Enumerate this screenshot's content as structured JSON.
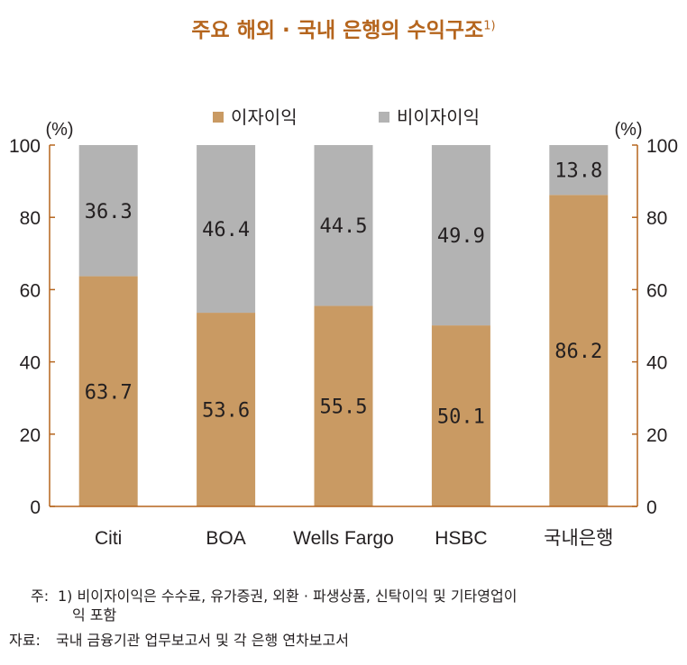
{
  "title": "주요 해외 · 국내 은행의 수익구조",
  "title_sup": "1)",
  "chart_data": {
    "type": "bar",
    "stacked": true,
    "categories": [
      "Citi",
      "BOA",
      "Wells Fargo",
      "HSBC",
      "국내은행"
    ],
    "series": [
      {
        "name": "이자이익",
        "values": [
          63.7,
          53.6,
          55.5,
          50.1,
          86.2
        ],
        "color": "#c99a63"
      },
      {
        "name": "비이자이익",
        "values": [
          36.3,
          46.4,
          44.5,
          49.9,
          13.8
        ],
        "color": "#b3b3b3"
      }
    ],
    "ylim": [
      0,
      100
    ],
    "yticks": [
      0,
      20,
      40,
      60,
      80,
      100
    ],
    "yunit_left": "(%)",
    "yunit_right": "(%)",
    "axis_color": "#b5651d",
    "legend_position": "top"
  },
  "notes": {
    "note_prefix": "주:",
    "note_line1": "1) 비이자이익은 수수료, 유가증권, 외환 · 파생상품, 신탁이익 및 기타영업이",
    "note_line2": "익 포함",
    "source_prefix": "자료:",
    "source_text": "국내 금융기관 업무보고서 및 각 은행 연차보고서"
  }
}
